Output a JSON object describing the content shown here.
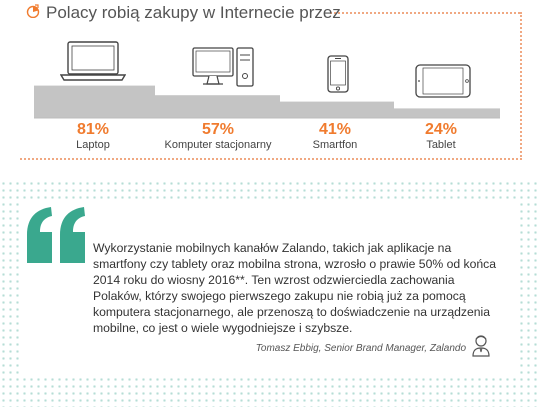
{
  "title": "Polacy robią zakupy w Internecie przez",
  "chart_data": {
    "type": "bar",
    "title": "Polacy robią zakupy w Internecie przez",
    "categories": [
      "Laptop",
      "Komputer stacjonarny",
      "Smartfon",
      "Tablet"
    ],
    "values": [
      81,
      57,
      41,
      24
    ],
    "value_labels": [
      "81%",
      "57%",
      "41%",
      "24%"
    ],
    "ylim": [
      0,
      100
    ],
    "icons": [
      "laptop-icon",
      "desktop-computer-icon",
      "smartphone-icon",
      "tablet-icon"
    ],
    "colors": {
      "bar": "#c4c4c4",
      "value_label": "#f07b2e",
      "label": "#444444"
    }
  },
  "quote": {
    "text": "Wykorzystanie mobilnych kanałów Zalando, takich jak aplikacje na smartfony czy tablety oraz mobilna strona, wzrosło o prawie 50% od końca 2014 roku do wiosny 2016**. Ten wzrost odzwierciedla zachowania Polaków, którzy swojego pierwszego zakupu nie robią już za pomocą komputera stacjonarnego, ale przenoszą to doświadczenie na urządzenia mobilne, co jest o wiele wygodniejsze i szybsze.",
    "author": "Tomasz Ebbig, Senior Brand Manager, Zalando"
  },
  "colors": {
    "accent": "#f07b2e",
    "quote_mark": "#3aa88e",
    "dots": "#b5ddd5"
  }
}
